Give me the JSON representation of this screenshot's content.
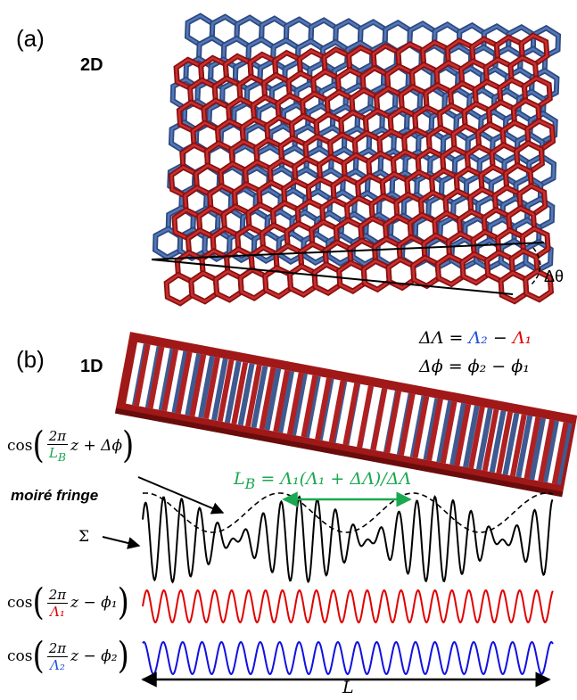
{
  "panel_a": {
    "label": "(a)",
    "dimension": "2D",
    "angle": "Δθ"
  },
  "panel_b": {
    "label": "(b)",
    "dimension": "1D",
    "delta_lambda": {
      "left": "ΔΛ =",
      "lambda2": "Λ₂",
      "minus": "−",
      "lambda1": "Λ₁"
    },
    "delta_phi": "Δϕ = ϕ₂ − ϕ₁",
    "envelope": {
      "cos": "cos",
      "open": "(",
      "numerator": "2π",
      "denominator": "L",
      "denominator_sub": "B",
      "tail": "z + Δϕ",
      "close": ")"
    },
    "moire_label": "moiré fringe",
    "beat_length": {
      "symbol": "L",
      "sub": "B",
      "formula": "= Λ₁(Λ₁ + ΔΛ)/ΔΛ"
    },
    "sum_label": "Σ",
    "wave1": {
      "cos": "cos",
      "open": "(",
      "numerator": "2π",
      "denominator": "Λ₁",
      "tail": "z − ϕ₁",
      "close": ")"
    },
    "wave2": {
      "cos": "cos",
      "open": "(",
      "numerator": "2π",
      "denominator": "Λ₂",
      "tail": "z − ϕ₂",
      "close": ")"
    },
    "length_label": "L"
  }
}
